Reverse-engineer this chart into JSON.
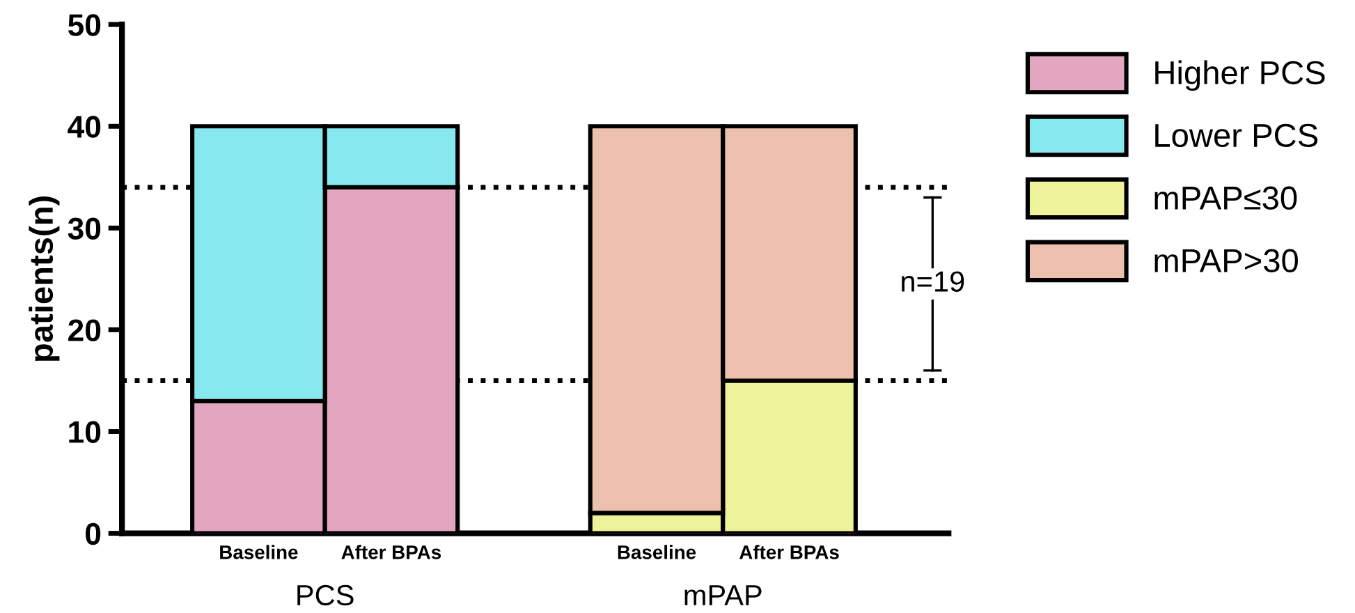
{
  "chart_data": {
    "type": "bar",
    "stacked": true,
    "ylabel": "patients(n)",
    "categories": [
      "Baseline",
      "After BPAs",
      null,
      "Baseline",
      "After BPAs"
    ],
    "series": [
      {
        "name": "Higher PCS",
        "color": "#e3a6c0",
        "values": [
          13,
          34,
          null,
          null,
          null
        ]
      },
      {
        "name": "Lower PCS",
        "color": "#86e8ef",
        "values": [
          27,
          6,
          null,
          null,
          null
        ]
      },
      {
        "name": "mPAP≤30",
        "color": "#eef29b",
        "values": [
          null,
          null,
          null,
          2,
          15
        ]
      },
      {
        "name": "mPAP>30",
        "color": "#edc0ad",
        "values": [
          null,
          null,
          null,
          38,
          25
        ]
      }
    ],
    "ylim": [
      0,
      50
    ],
    "yticks": [
      0,
      10,
      20,
      30,
      40,
      50
    ],
    "grid": false,
    "legend": "top right",
    "ref_lines": [
      {
        "axis": "y",
        "value": 34,
        "color": "#000000",
        "line_style": "dotted"
      },
      {
        "axis": "y",
        "value": 15,
        "color": "#000000",
        "line_style": "dotted"
      }
    ],
    "annotations": [
      "PCS",
      "mPAP",
      "n=19"
    ]
  }
}
